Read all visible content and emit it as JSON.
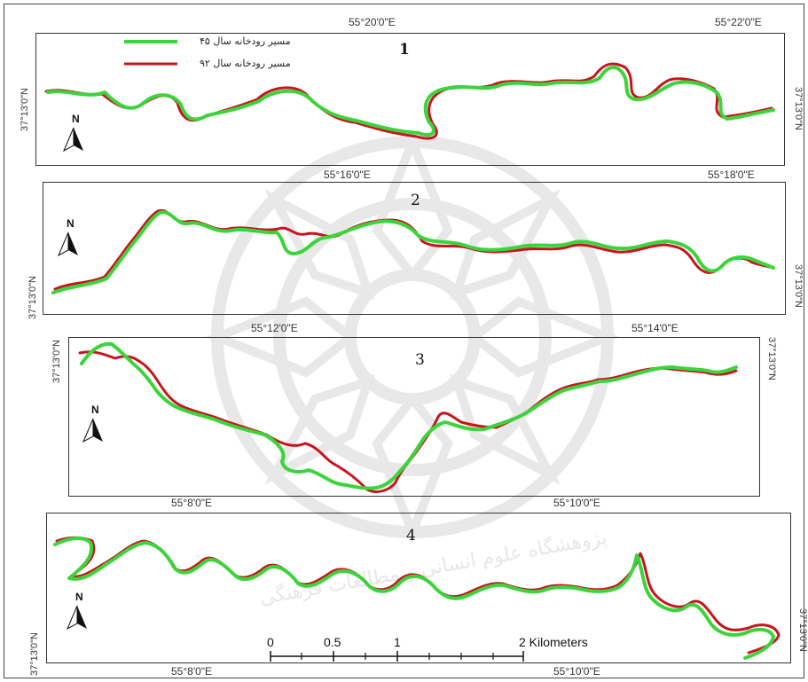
{
  "legend": {
    "green_label": "مسیر رودخانه سال ۴۵",
    "red_label": "مسیر رودخانه سال ۹۲",
    "green_color": "#3cd43c",
    "red_color": "#c8141e"
  },
  "panels": [
    {
      "number": "1",
      "lon_left": "55°20'0\"E",
      "lon_right": "55°22'0\"E",
      "lat_left": "37°13'0\"N",
      "lat_right": "37°13'0\"N"
    },
    {
      "number": "2",
      "lon_left": "55°16'0\"E",
      "lon_right": "55°18'0\"E",
      "lat_left": "37°13'0\"N",
      "lat_right": "37°13'0\"N"
    },
    {
      "number": "3",
      "lon_left": "55°12'0\"E",
      "lon_right": "55°14'0\"E",
      "lat_left": "37°13'0\"N",
      "lat_right": "37°13'0\"N"
    },
    {
      "number": "4",
      "lon_top_left": "55°8'0\"E",
      "lon_top_right": "55°10'0\"E",
      "lon_bottom_left": "55°8'0\"E",
      "lon_bottom_right": "55°10'0\"E",
      "lat_left": "37°13'0\"N",
      "lat_right": "37°13'0\"N"
    }
  ],
  "north_arrow_label": "N",
  "scale_bar": {
    "labels": [
      "0",
      "0.5",
      "1",
      "2 Kilometers"
    ]
  },
  "watermark_text": "پژوهشگاه علوم انسانی و مطالعات فرهنگی"
}
